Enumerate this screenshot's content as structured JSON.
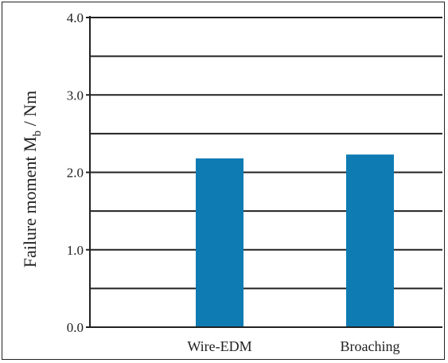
{
  "chart_data": {
    "type": "bar",
    "categories": [
      "Wire-EDM",
      "Broaching"
    ],
    "values": [
      2.18,
      2.23
    ],
    "ylim": [
      0,
      4.0
    ],
    "major_ticks": [
      0.0,
      1.0,
      2.0,
      3.0,
      4.0
    ],
    "major_tick_labels": [
      "0.0",
      "1.0",
      "2.0",
      "3.0",
      "4.0"
    ],
    "minor_ticks": [
      0.5,
      1.5,
      2.5,
      3.5
    ],
    "ylabel_main": "Failure moment M",
    "ylabel_sub": "b",
    "ylabel_unit": " / Nm",
    "xlabel": "",
    "title": "",
    "grid": true,
    "legend": "none",
    "bar_color": "#0f7bb3",
    "grid_color": "#222222"
  }
}
